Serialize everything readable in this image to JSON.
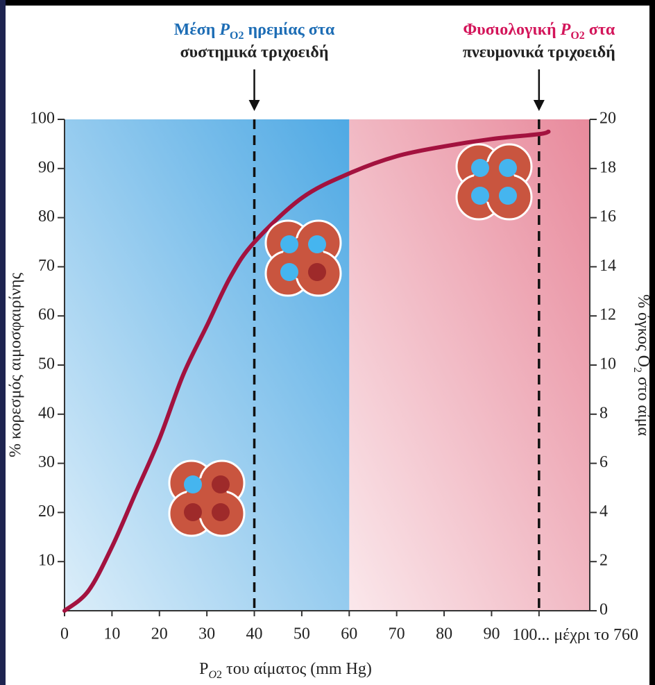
{
  "chart_data": {
    "type": "line",
    "annotations": [
      {
        "parts": [
          "Μέση ",
          "P",
          "O",
          "2",
          " ηρεμίας στα"
        ],
        "line2": "συστημικά τριχοειδή",
        "color": "#1d6db5",
        "x": 40
      },
      {
        "parts": [
          "Φυσιολογική ",
          "P",
          "O",
          "2",
          " στα"
        ],
        "line2": "πνευμονικά τριχοειδή",
        "color": "#d3155a",
        "x": 100
      }
    ],
    "x_label": {
      "parts": [
        "P",
        "O",
        "2",
        " του αίματος (mm Hg)"
      ]
    },
    "y_label": "% κορεσμός αιμοσφαιρίνης",
    "y2_label": {
      "parts": [
        "% όγκος O",
        "2",
        " στο αίμα"
      ]
    },
    "x": [
      0,
      5,
      10,
      15,
      20,
      25,
      30,
      35,
      40,
      50,
      60,
      70,
      80,
      90,
      100,
      102
    ],
    "values": [
      0,
      4,
      13,
      24,
      35,
      48,
      58,
      68,
      75,
      84,
      89,
      92.5,
      94.5,
      96,
      97,
      97.5
    ],
    "color": "#a3123f",
    "xlim": [
      0,
      110.7
    ],
    "xticks": [
      0,
      10,
      20,
      30,
      40,
      50,
      60,
      70,
      80,
      90,
      {
        "value": 100,
        "label": "100... μέχρι το 760"
      }
    ],
    "ylim": [
      0,
      100
    ],
    "yticks": [
      10,
      20,
      30,
      40,
      50,
      60,
      70,
      80,
      90,
      100
    ],
    "y2lim": [
      0,
      20
    ],
    "y2ticks": [
      0,
      2,
      4,
      6,
      8,
      10,
      12,
      14,
      16,
      18,
      20
    ],
    "regions": [
      {
        "from": 0,
        "color": "#4fa9e4"
      },
      {
        "from": 60,
        "color": "#e88a9c"
      }
    ]
  }
}
